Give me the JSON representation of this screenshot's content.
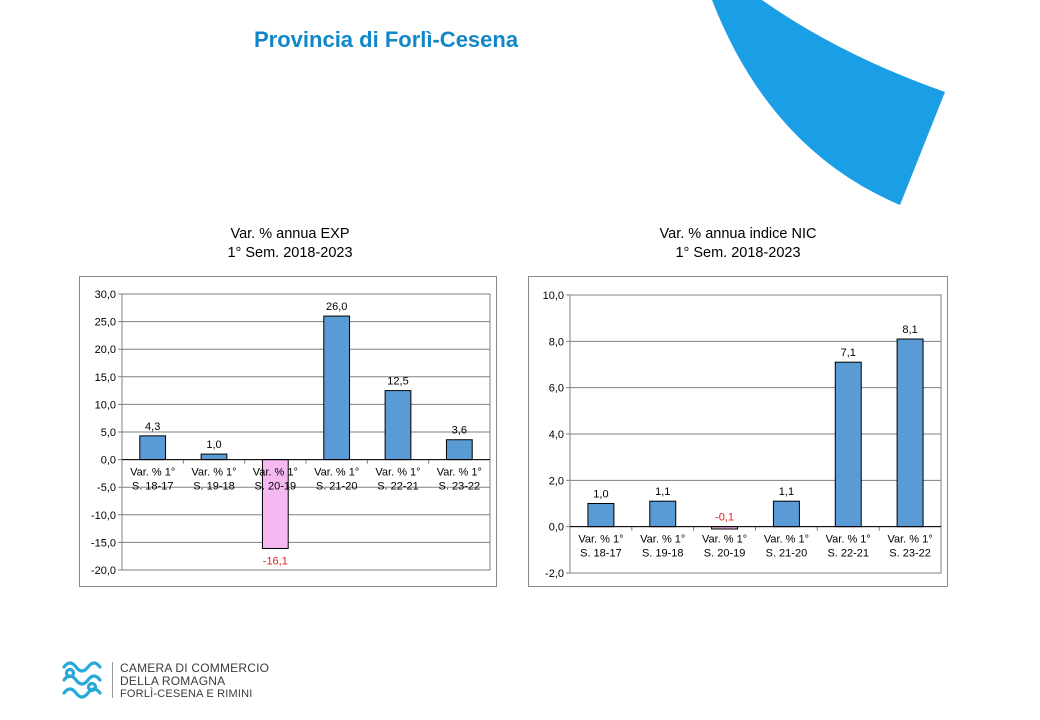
{
  "header": {
    "title": "Provincia di Forlì-Cesena"
  },
  "colors": {
    "accent": "#1a9ee6",
    "bar": "#5b9bd5",
    "bar_negative": "#f5b8f0",
    "negative_label": "#e02020"
  },
  "logo": {
    "icon": "camera-commercio-knot-icon",
    "line1": "CAMERA DI COMMERCIO",
    "line2": "DELLA ROMAGNA",
    "line3": "FORLÌ-CESENA E RIMINI"
  },
  "chart_data": [
    {
      "type": "bar",
      "title_lines": [
        "Var. % annua EXP",
        "1° Sem. 2018-2023"
      ],
      "categories": [
        [
          "Var. % 1°",
          "S. 18-17"
        ],
        [
          "Var. % 1°",
          "S. 19-18"
        ],
        [
          "Var. % 1°",
          "S. 20-19"
        ],
        [
          "Var. % 1°",
          "S. 21-20"
        ],
        [
          "Var. % 1°",
          "S. 22-21"
        ],
        [
          "Var. % 1°",
          "S. 23-22"
        ]
      ],
      "values": [
        4.3,
        1.0,
        -16.1,
        26.0,
        12.5,
        3.6
      ],
      "labels": [
        "4,3",
        "1,0",
        "-16,1",
        "26,0",
        "12,5",
        "3,6"
      ],
      "ylim": [
        -20,
        30
      ],
      "yticks": [
        30,
        25,
        20,
        15,
        10,
        5,
        0,
        -5,
        -10,
        -15,
        -20
      ],
      "ytick_labels": [
        "30,0",
        "25,0",
        "20,0",
        "15,0",
        "10,0",
        "5,0",
        "0,0",
        "-5,0",
        "-10,0",
        "-15,0",
        "-20,0"
      ],
      "grid": true,
      "legend": "none"
    },
    {
      "type": "bar",
      "title_lines": [
        "Var. % annua indice NIC",
        "1° Sem. 2018-2023"
      ],
      "categories": [
        [
          "Var. % 1°",
          "S. 18-17"
        ],
        [
          "Var. % 1°",
          "S. 19-18"
        ],
        [
          "Var. % 1°",
          "S. 20-19"
        ],
        [
          "Var. % 1°",
          "S. 21-20"
        ],
        [
          "Var. % 1°",
          "S. 22-21"
        ],
        [
          "Var. % 1°",
          "S. 23-22"
        ]
      ],
      "values": [
        1.0,
        1.1,
        -0.1,
        1.1,
        7.1,
        8.1
      ],
      "labels": [
        "1,0",
        "1,1",
        "-0,1",
        "1,1",
        "7,1",
        "8,1"
      ],
      "ylim": [
        -2,
        10
      ],
      "yticks": [
        10,
        8,
        6,
        4,
        2,
        0,
        -2
      ],
      "ytick_labels": [
        "10,0",
        "8,0",
        "6,0",
        "4,0",
        "2,0",
        "0,0",
        "-2,0"
      ],
      "grid": true,
      "legend": "none"
    }
  ]
}
